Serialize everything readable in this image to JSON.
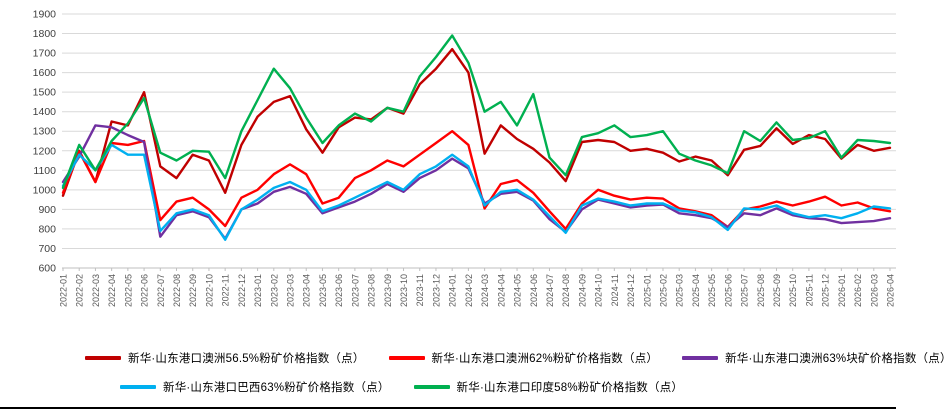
{
  "chart_data": {
    "type": "line",
    "title": "",
    "xlabel": "",
    "ylabel": "",
    "ylim": [
      600,
      1900
    ],
    "y_tick_step": 100,
    "grid": true,
    "legend_position": "bottom",
    "x_labels": [
      "2022-01",
      "2022-02",
      "2022-03",
      "2022-04",
      "2022-05",
      "2022-06",
      "2022-07",
      "2022-08",
      "2022-09",
      "2022-10",
      "2022-11",
      "2022-12",
      "2023-01",
      "2023-02",
      "2023-03",
      "2023-04",
      "2023-05",
      "2023-06",
      "2023-07",
      "2023-08",
      "2023-09",
      "2023-10",
      "2023-11",
      "2023-12",
      "2024-01",
      "2024-02",
      "2024-03",
      "2024-04",
      "2024-05",
      "2024-06",
      "2024-07",
      "2024-08",
      "2024-09",
      "2024-10",
      "2024-11",
      "2024-12",
      "2025-01",
      "2025-02",
      "2025-03",
      "2025-04",
      "2025-05",
      "2025-06",
      "2025-07",
      "2025-08",
      "2025-09",
      "2025-10",
      "2025-11",
      "2025-12",
      "2026-01",
      "2026-02",
      "2026-03",
      "2026-04"
    ],
    "series": [
      {
        "name": "新华·山东港口澳洲56.5%粉矿价格指数（点）",
        "color": "#C00000",
        "values": [
          970,
          1200,
          1040,
          1350,
          1330,
          1500,
          1120,
          1060,
          1180,
          1150,
          985,
          1230,
          1375,
          1450,
          1480,
          1310,
          1190,
          1320,
          1370,
          1360,
          1420,
          1390,
          1540,
          1620,
          1720,
          1600,
          1185,
          1330,
          1260,
          1210,
          1140,
          1045,
          1245,
          1255,
          1245,
          1200,
          1210,
          1190,
          1145,
          1170,
          1150,
          1075,
          1205,
          1225,
          1315,
          1235,
          1280,
          1260,
          1160,
          1230,
          1200,
          1215
        ]
      },
      {
        "name": "新华·山东港口澳洲62%粉矿价格指数（点）",
        "color": "#FF0000",
        "values": [
          985,
          1195,
          1040,
          1240,
          1230,
          1250,
          845,
          940,
          960,
          900,
          815,
          960,
          1000,
          1080,
          1130,
          1080,
          930,
          960,
          1060,
          1100,
          1150,
          1120,
          1180,
          1240,
          1300,
          1230,
          905,
          1030,
          1050,
          985,
          890,
          800,
          930,
          1000,
          970,
          950,
          960,
          955,
          905,
          890,
          870,
          810,
          900,
          915,
          940,
          920,
          940,
          965,
          920,
          935,
          905,
          890
        ]
      },
      {
        "name": "新华·山东港口澳洲63%块矿价格指数（点）",
        "color": "#7030A0",
        "values": [
          1040,
          1170,
          1330,
          1320,
          1280,
          1245,
          760,
          870,
          890,
          860,
          750,
          900,
          930,
          990,
          1015,
          980,
          880,
          910,
          940,
          980,
          1030,
          990,
          1060,
          1100,
          1160,
          1110,
          930,
          980,
          990,
          945,
          850,
          785,
          900,
          950,
          930,
          910,
          920,
          925,
          880,
          870,
          855,
          810,
          880,
          870,
          905,
          870,
          855,
          850,
          830,
          835,
          840,
          855
        ]
      },
      {
        "name": "新华·山东港口巴西63%粉矿价格指数（点）",
        "color": "#00B0F0",
        "values": [
          1020,
          1180,
          1100,
          1230,
          1180,
          1180,
          790,
          880,
          900,
          870,
          745,
          900,
          950,
          1010,
          1040,
          1000,
          890,
          920,
          960,
          1000,
          1040,
          1000,
          1080,
          1120,
          1180,
          1120,
          920,
          990,
          1000,
          950,
          865,
          780,
          920,
          955,
          940,
          920,
          930,
          930,
          895,
          885,
          860,
          795,
          905,
          900,
          920,
          880,
          860,
          870,
          855,
          880,
          915,
          905
        ]
      },
      {
        "name": "新华·山东港口印度58%粉矿价格指数（点）",
        "color": "#00B050",
        "values": [
          1010,
          1230,
          1100,
          1250,
          1340,
          1470,
          1190,
          1150,
          1200,
          1195,
          1060,
          1300,
          1460,
          1620,
          1520,
          1370,
          1240,
          1330,
          1390,
          1350,
          1420,
          1400,
          1580,
          1680,
          1790,
          1650,
          1400,
          1450,
          1330,
          1490,
          1165,
          1075,
          1270,
          1290,
          1330,
          1270,
          1280,
          1300,
          1185,
          1150,
          1125,
          1085,
          1300,
          1250,
          1345,
          1255,
          1265,
          1300,
          1165,
          1255,
          1250,
          1240
        ]
      }
    ]
  },
  "colors": {
    "gridline": "#D9D9D9",
    "axis_line": "#BFBFBF",
    "y_tick_label": "#404040",
    "x_tick_label": "#595959",
    "bottom_rule": "#000000"
  }
}
